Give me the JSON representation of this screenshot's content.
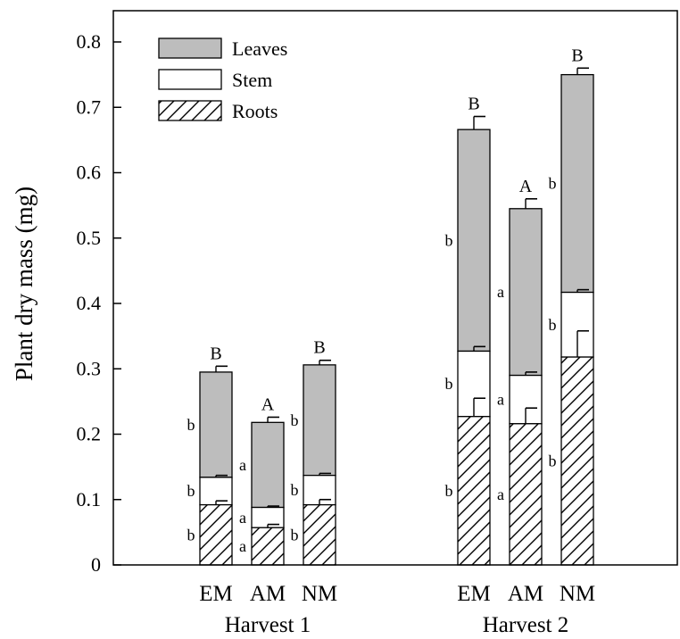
{
  "chart_data": {
    "type": "bar",
    "stacked": true,
    "ylabel": "Plant dry mass (mg)",
    "ylim": [
      0,
      0.8
    ],
    "yticks": [
      "0",
      "0.1",
      "0.2",
      "0.3",
      "0.4",
      "0.5",
      "0.6",
      "0.7",
      "0.8"
    ],
    "grid": false,
    "legend_position": "top-left",
    "legend": [
      {
        "name": "Leaves",
        "fill": "gray"
      },
      {
        "name": "Stem",
        "fill": "white"
      },
      {
        "name": "Roots",
        "fill": "hatched"
      }
    ],
    "colors": {
      "leaves": "#bdbdbd",
      "stem": "#ffffff",
      "roots": "#ffffff",
      "outline": "#000000"
    },
    "groups": [
      {
        "label": "Harvest 1",
        "bars": [
          {
            "category": "EM",
            "roots": 0.092,
            "stem": 0.134,
            "total": 0.295,
            "err": {
              "roots": 0.006,
              "stem": 0.003,
              "total": 0.009
            },
            "letters": {
              "roots": "b",
              "stem": "b",
              "leaves": "b",
              "total": "B"
            }
          },
          {
            "category": "AM",
            "roots": 0.057,
            "stem": 0.088,
            "total": 0.218,
            "err": {
              "roots": 0.005,
              "stem": 0.002,
              "total": 0.008
            },
            "letters": {
              "roots": "a",
              "stem": "a",
              "leaves": "a",
              "total": "A"
            }
          },
          {
            "category": "NM",
            "roots": 0.092,
            "stem": 0.137,
            "total": 0.306,
            "err": {
              "roots": 0.008,
              "stem": 0.003,
              "total": 0.007
            },
            "letters": {
              "roots": "b",
              "stem": "b",
              "leaves": "b",
              "total": "B"
            }
          }
        ]
      },
      {
        "label": "Harvest 2",
        "bars": [
          {
            "category": "EM",
            "roots": 0.227,
            "stem": 0.327,
            "total": 0.666,
            "err": {
              "roots": 0.028,
              "stem": 0.007,
              "total": 0.02
            },
            "letters": {
              "roots": "b",
              "stem": "b",
              "leaves": "b",
              "total": "B"
            }
          },
          {
            "category": "AM",
            "roots": 0.216,
            "stem": 0.29,
            "total": 0.545,
            "err": {
              "roots": 0.024,
              "stem": 0.005,
              "total": 0.015
            },
            "letters": {
              "roots": "a",
              "stem": "a",
              "leaves": "a",
              "total": "A"
            }
          },
          {
            "category": "NM",
            "roots": 0.318,
            "stem": 0.417,
            "total": 0.75,
            "err": {
              "roots": 0.04,
              "stem": 0.004,
              "total": 0.01
            },
            "letters": {
              "roots": "b",
              "stem": "b",
              "leaves": "b",
              "total": "B"
            }
          }
        ]
      }
    ]
  }
}
